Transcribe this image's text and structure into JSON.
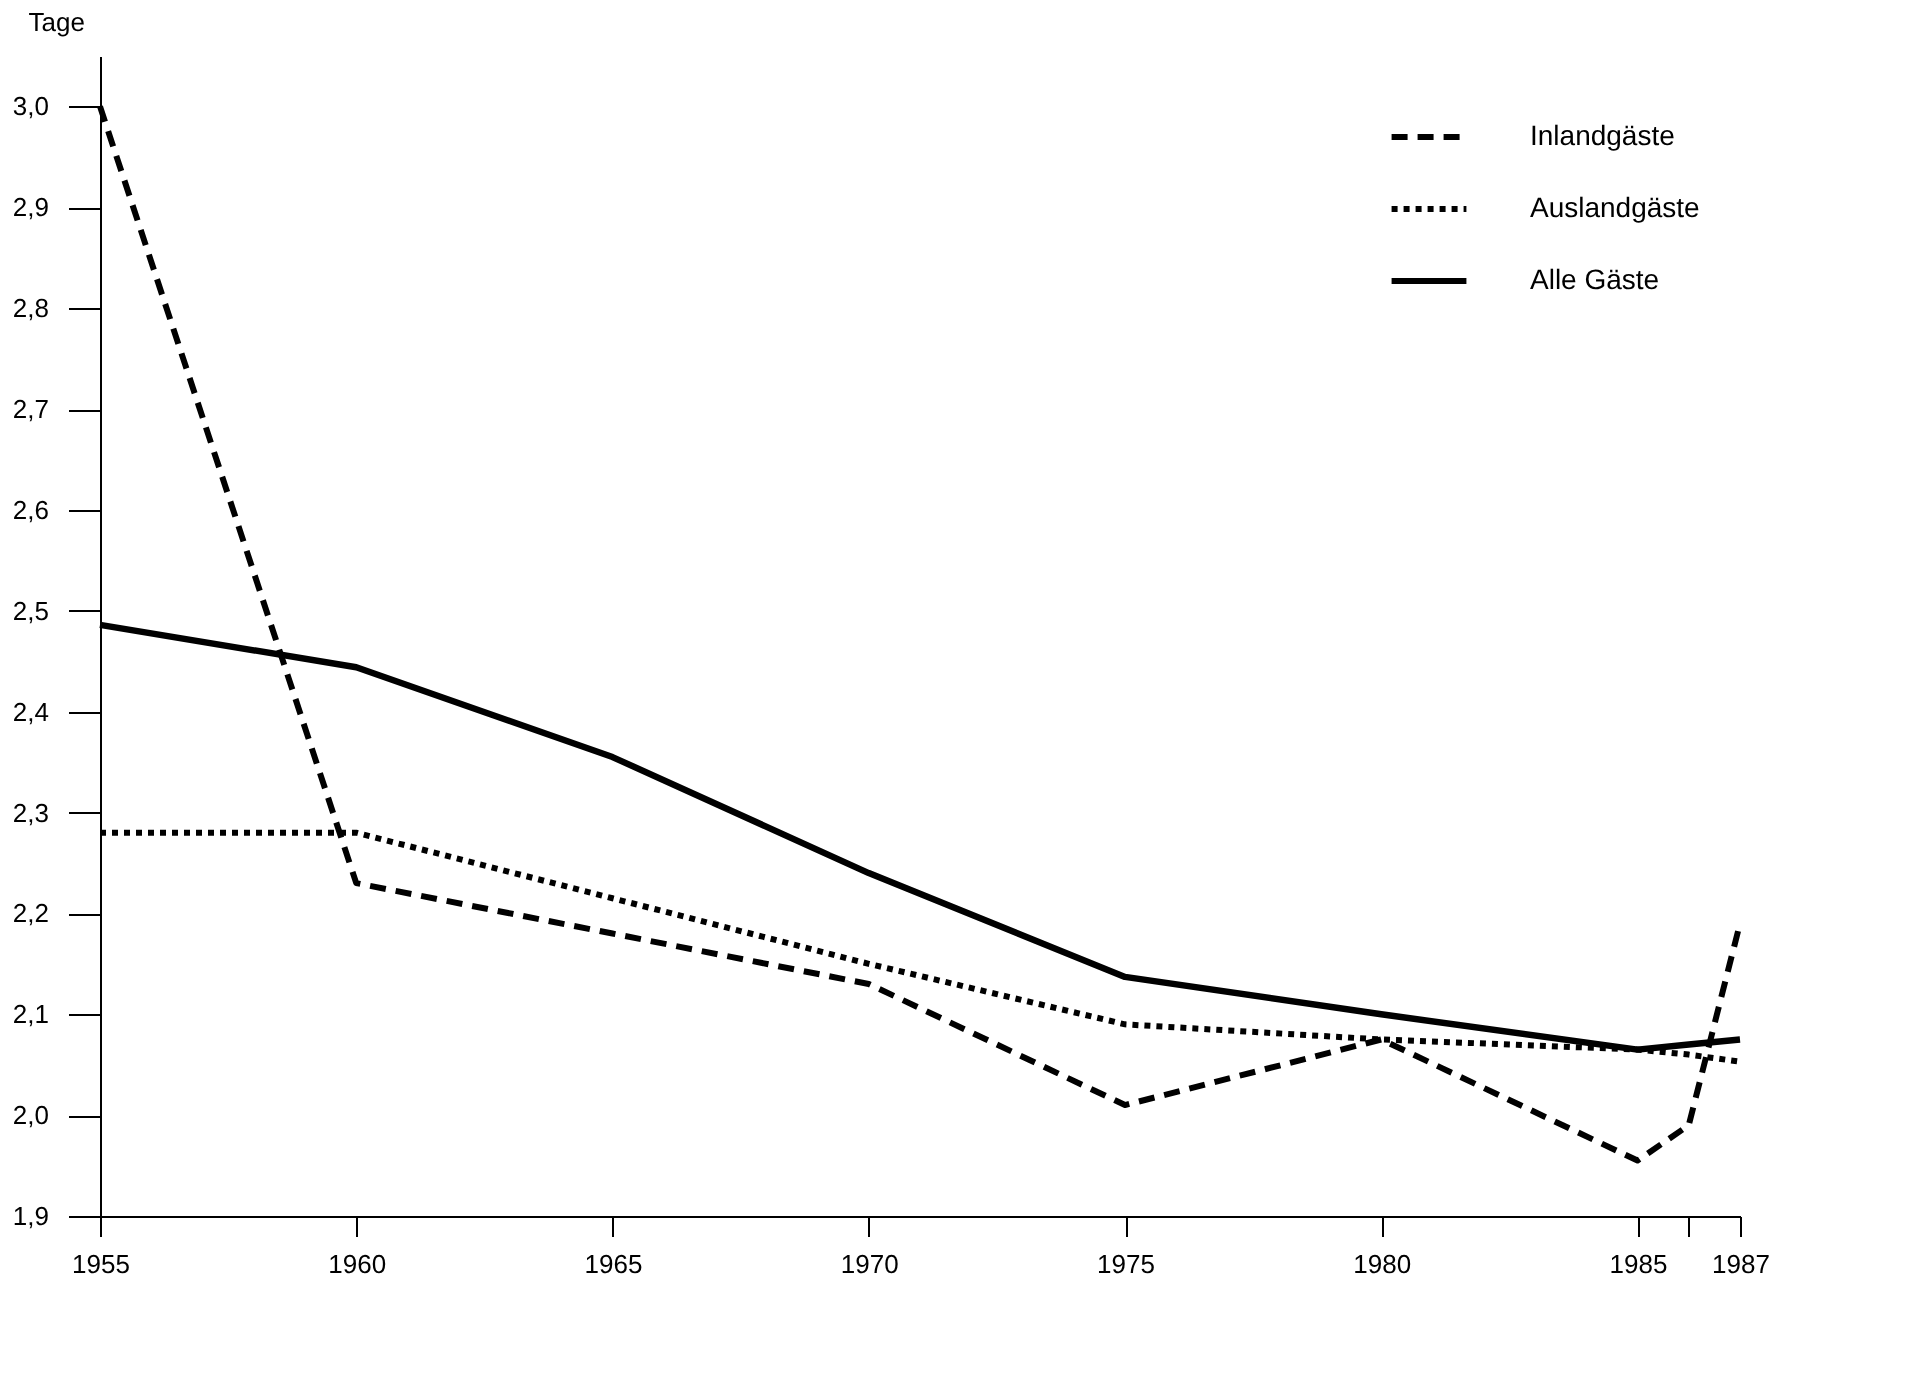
{
  "chart_data": {
    "type": "line",
    "ylabel": "Tage",
    "x": [
      1955,
      1960,
      1965,
      1970,
      1975,
      1980,
      1985,
      1986,
      1987
    ],
    "series": [
      {
        "name": "Inlandgäste",
        "color": "#000000",
        "line_style": "dashed",
        "values": [
          3.0,
          2.23,
          2.18,
          2.13,
          2.01,
          2.075,
          1.955,
          1.99,
          2.19
        ]
      },
      {
        "name": "Auslandgäste",
        "color": "#000000",
        "line_style": "dotted",
        "values": [
          2.28,
          2.28,
          2.215,
          2.15,
          2.09,
          2.075,
          2.065,
          2.06,
          2.053
        ]
      },
      {
        "name": "Alle Gäste",
        "color": "#000000",
        "line_style": "solid",
        "values": [
          2.486,
          2.444,
          2.355,
          2.24,
          2.137,
          2.1,
          2.065,
          2.07,
          2.075
        ]
      }
    ],
    "xlim": [
      1955,
      1987
    ],
    "xticks": [
      1955,
      1960,
      1965,
      1970,
      1975,
      1980,
      1985,
      {
        "value": 1986,
        "label": null
      },
      1987
    ],
    "ylim": [
      1.9,
      3.05
    ],
    "yticks": [
      {
        "value": 1.9,
        "label": "1,9"
      },
      {
        "value": 2.0,
        "label": "2,0"
      },
      {
        "value": 2.1,
        "label": "2,1"
      },
      {
        "value": 2.2,
        "label": "2,2"
      },
      {
        "value": 2.3,
        "label": "2,3"
      },
      {
        "value": 2.4,
        "label": "2,4"
      },
      {
        "value": 2.5,
        "label": "2,5"
      },
      {
        "value": 2.6,
        "label": "2,6"
      },
      {
        "value": 2.7,
        "label": "2,7"
      },
      {
        "value": 2.8,
        "label": "2,8"
      },
      {
        "value": 2.9,
        "label": "2,9"
      },
      {
        "value": 3.0,
        "label": "3,0"
      }
    ],
    "grid": false,
    "legend": "top right",
    "marker": "none"
  }
}
